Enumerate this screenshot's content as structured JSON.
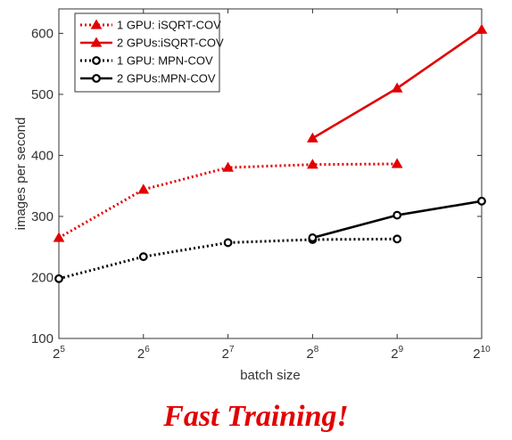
{
  "caption": "Fast Training!",
  "chart_data": {
    "type": "line",
    "xlabel": "batch size",
    "ylabel": "images per second",
    "x_scale": "log2",
    "x_ticks": [
      {
        "base": "2",
        "exp": "5",
        "value": 32
      },
      {
        "base": "2",
        "exp": "6",
        "value": 64
      },
      {
        "base": "2",
        "exp": "7",
        "value": 128
      },
      {
        "base": "2",
        "exp": "8",
        "value": 256
      },
      {
        "base": "2",
        "exp": "9",
        "value": 512
      },
      {
        "base": "2",
        "exp": "10",
        "value": 1024
      }
    ],
    "y_ticks": [
      "100",
      "200",
      "300",
      "400",
      "500",
      "600"
    ],
    "xlim": [
      32,
      1024
    ],
    "ylim": [
      100,
      640
    ],
    "grid": false,
    "legend_position": "top-left",
    "series": [
      {
        "name": "1 GPU:  iSQRT-COV",
        "color": "#e10000",
        "line": "dotted",
        "marker": "triangle",
        "points": [
          [
            32,
            265
          ],
          [
            64,
            344
          ],
          [
            128,
            380
          ],
          [
            256,
            385
          ],
          [
            512,
            386
          ]
        ]
      },
      {
        "name": "2 GPUs:iSQRT-COV",
        "color": "#e10000",
        "line": "solid",
        "marker": "triangle",
        "points": [
          [
            256,
            428
          ],
          [
            512,
            510
          ],
          [
            1024,
            606
          ]
        ]
      },
      {
        "name": "1 GPU:  MPN-COV",
        "color": "#000000",
        "line": "dotted",
        "marker": "circle",
        "points": [
          [
            32,
            198
          ],
          [
            64,
            234
          ],
          [
            128,
            257
          ],
          [
            256,
            262
          ],
          [
            512,
            263
          ]
        ]
      },
      {
        "name": "2 GPUs:MPN-COV",
        "color": "#000000",
        "line": "solid",
        "marker": "circle",
        "points": [
          [
            256,
            265
          ],
          [
            512,
            302
          ],
          [
            1024,
            325
          ]
        ]
      }
    ]
  }
}
